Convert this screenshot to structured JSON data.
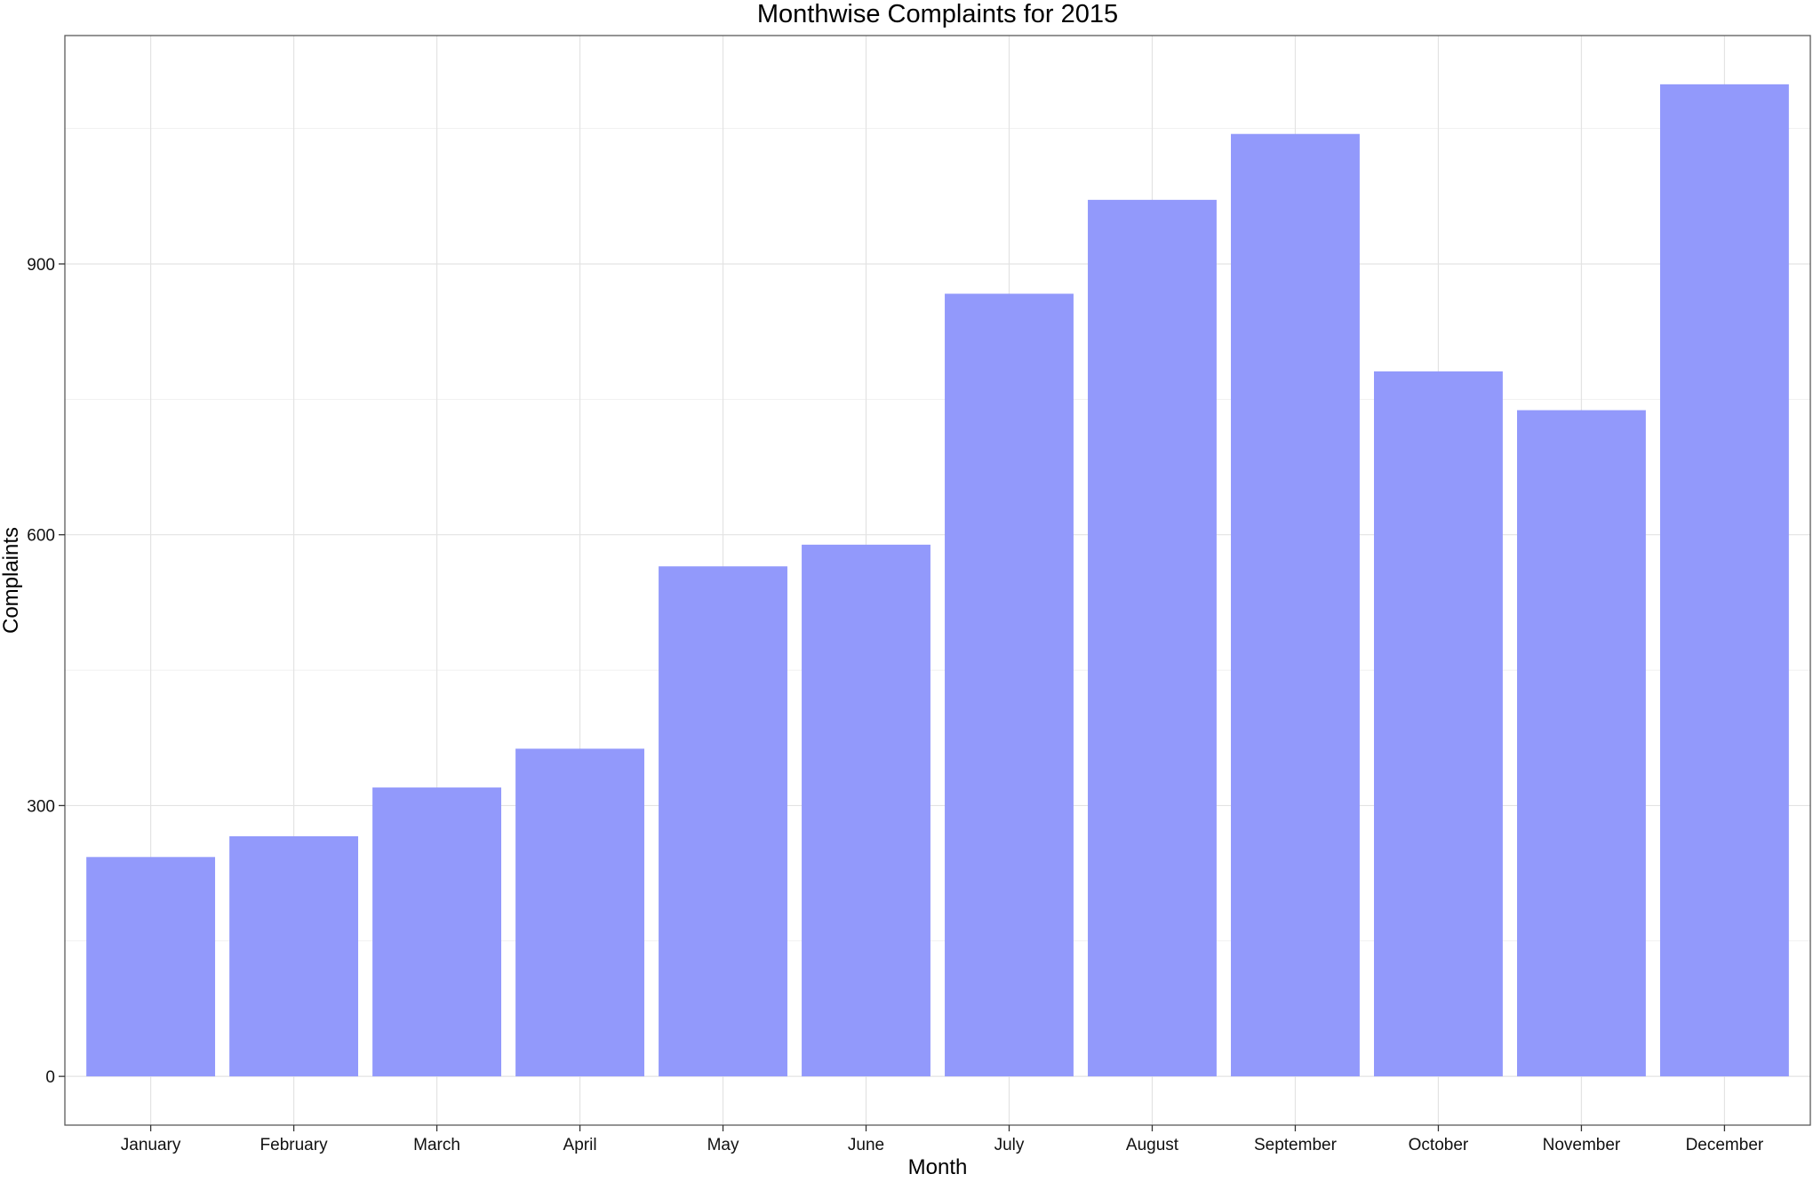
{
  "chart_data": {
    "type": "bar",
    "title": "Monthwise Complaints for 2015",
    "xlabel": "Month",
    "ylabel": "Complaints",
    "categories": [
      "January",
      "February",
      "March",
      "April",
      "May",
      "June",
      "July",
      "August",
      "September",
      "October",
      "November",
      "December"
    ],
    "values": [
      243,
      266,
      320,
      363,
      565,
      589,
      867,
      971,
      1044,
      781,
      738,
      1099
    ],
    "ylim": [
      -54,
      1153
    ],
    "yticks": [
      0,
      300,
      600,
      900
    ],
    "ytick_labels": [
      "0",
      "300",
      "600",
      "900"
    ],
    "grid": true,
    "legend": "none",
    "colors": {
      "bar": "#9299fb",
      "background": "#ffffff"
    }
  }
}
